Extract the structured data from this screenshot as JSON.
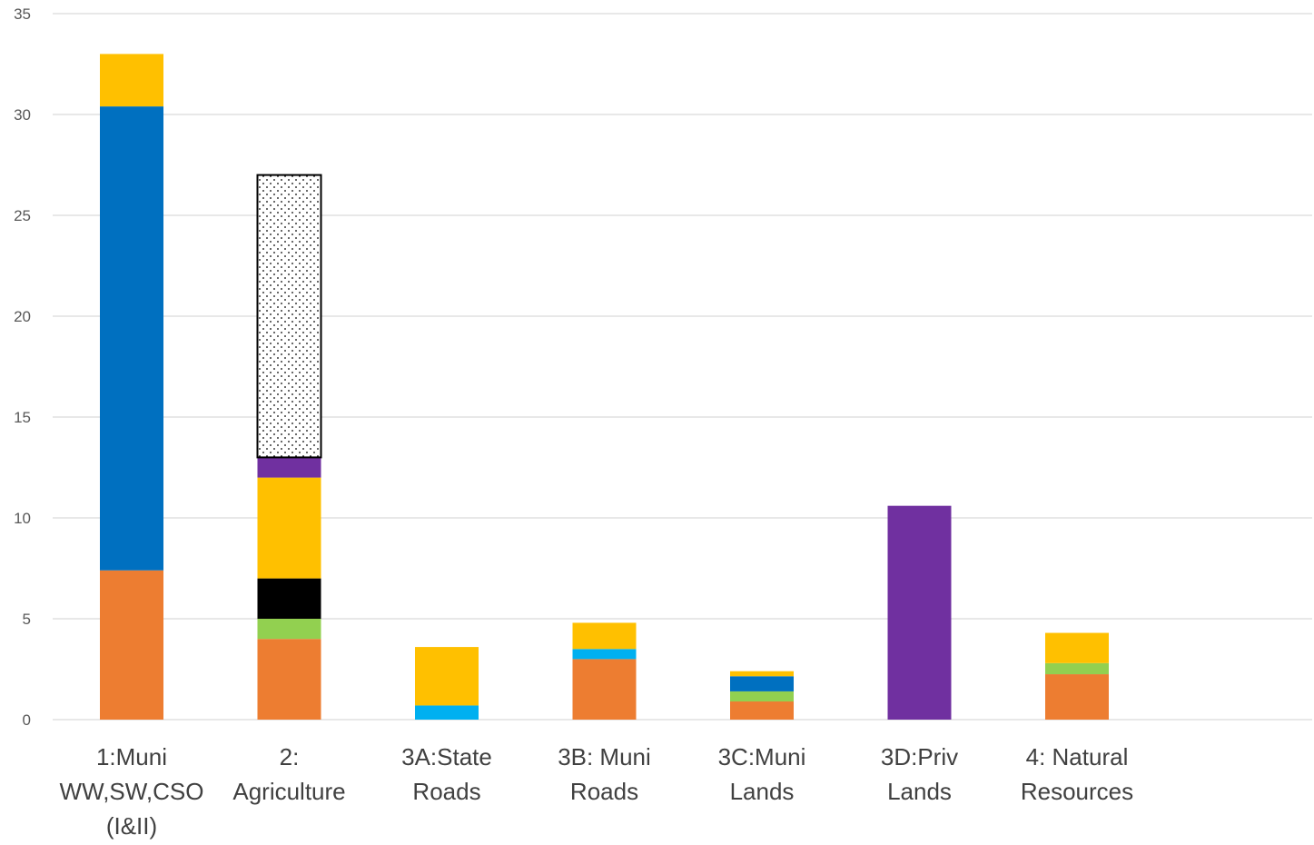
{
  "chart_data": {
    "type": "bar",
    "stacked": true,
    "title": "",
    "xlabel": "",
    "ylabel": "",
    "ylim": [
      0,
      35
    ],
    "yticks": [
      0,
      5,
      10,
      15,
      20,
      25,
      30,
      35
    ],
    "grid": true,
    "legend": "none",
    "categories": [
      [
        "1:Muni",
        "WW,SW,CSO",
        "(I&II)"
      ],
      [
        "2:",
        "Agriculture"
      ],
      [
        "3A:State",
        "Roads"
      ],
      [
        "3B: Muni",
        "Roads"
      ],
      [
        "3C:Muni",
        "Lands"
      ],
      [
        "3D:Priv",
        "Lands"
      ],
      [
        "4: Natural",
        "Resources"
      ]
    ],
    "series": [
      {
        "color": "#ED7D31",
        "pattern": "none",
        "values": [
          7.4,
          4.0,
          0,
          3.0,
          0.9,
          0,
          2.25
        ]
      },
      {
        "color": "#00B0F0",
        "pattern": "none",
        "values": [
          0,
          0,
          0.7,
          0.5,
          0,
          0,
          0
        ]
      },
      {
        "color": "#92D050",
        "pattern": "none",
        "values": [
          0,
          1.0,
          0,
          0,
          0.5,
          0,
          0.55
        ]
      },
      {
        "color": "#0070C0",
        "pattern": "none",
        "values": [
          23.0,
          0,
          0,
          0,
          0.75,
          0,
          0
        ]
      },
      {
        "color": "#000000",
        "pattern": "none",
        "values": [
          0,
          2.0,
          0,
          0,
          0,
          0,
          0
        ]
      },
      {
        "color": "#FFC000",
        "pattern": "none",
        "values": [
          2.6,
          5.0,
          2.9,
          1.3,
          0.25,
          0,
          1.5
        ]
      },
      {
        "color": "#7030A0",
        "pattern": "none",
        "values": [
          0,
          1.0,
          0,
          0,
          0,
          10.6,
          0
        ]
      },
      {
        "color": "#ffffff",
        "pattern": "dotted",
        "values": [
          0,
          14.0,
          0,
          0,
          0,
          0,
          0
        ]
      }
    ]
  }
}
